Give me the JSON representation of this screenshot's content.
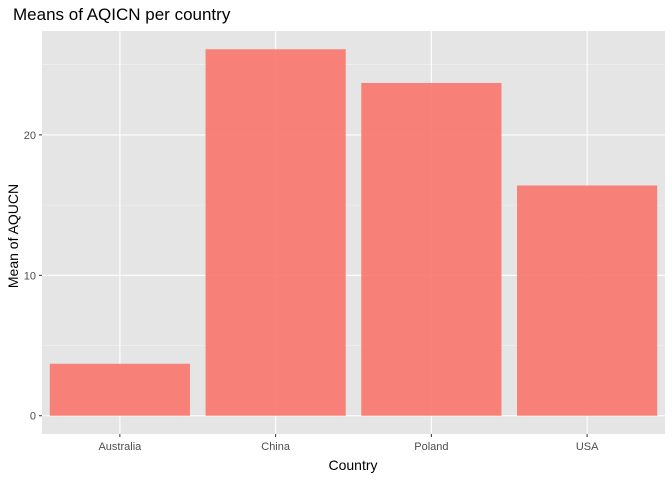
{
  "chart_data": {
    "type": "bar",
    "title": "Means of AQICN per country",
    "xlabel": "Country",
    "ylabel": "Mean of AQUCN",
    "categories": [
      "Australia",
      "China",
      "Poland",
      "USA"
    ],
    "values": [
      3.7,
      26.1,
      23.7,
      16.4
    ],
    "ylim": [
      -1.3,
      27.4
    ],
    "yticks": [
      0,
      10,
      20
    ],
    "ytick_labels": [
      "0",
      "10",
      "20"
    ],
    "grid": true,
    "panel_color": "#e5e5e5",
    "bar_color": "#f8766d",
    "bar_opacity": 0.9
  }
}
